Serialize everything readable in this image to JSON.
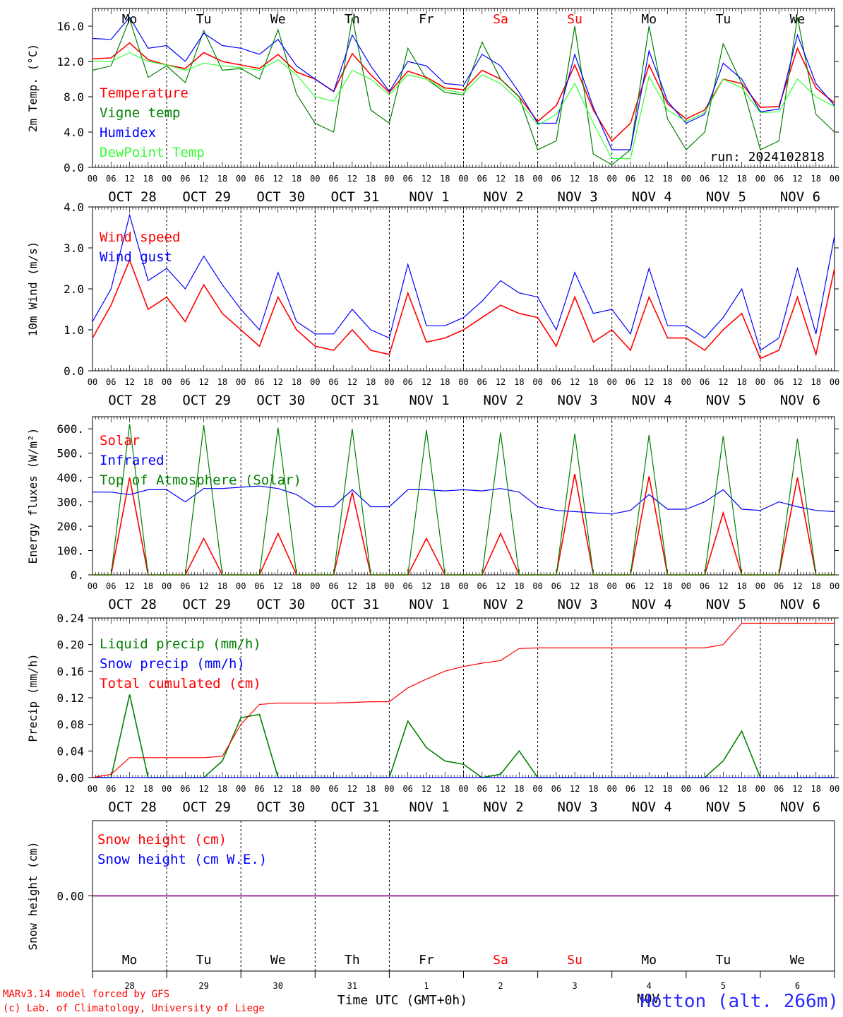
{
  "days": [
    "Mo",
    "Tu",
    "We",
    "Th",
    "Fr",
    "Sa",
    "Su",
    "Mo",
    "Tu",
    "We"
  ],
  "day_colors": [
    "#000000",
    "#000000",
    "#000000",
    "#000000",
    "#000000",
    "#ff0000",
    "#ff0000",
    "#000000",
    "#000000",
    "#000000"
  ],
  "dates": [
    "OCT 28",
    "OCT 29",
    "OCT 30",
    "OCT 31",
    "NOV  1",
    "NOV  2",
    "NOV  3",
    "NOV  4",
    "NOV  5",
    "NOV  6"
  ],
  "hour_ticks": [
    "00",
    "06",
    "12",
    "18"
  ],
  "last_hour_tick": "00",
  "run_label": "run: 2024102818",
  "bottom": {
    "day_numbers": [
      "28",
      "29",
      "30",
      "31",
      "1",
      "2",
      "3",
      "4",
      "5",
      "6"
    ],
    "month": "NOV",
    "xlabel": "Time UTC (GMT+0h)",
    "credit_line1": "MARv3.14 model forced by GFS",
    "credit_line2": "(c) Lab. of Climatology, University of Liege",
    "station": "Hotton (alt. 266m)"
  },
  "chart_data": [
    {
      "type": "line",
      "ylabel": "2m Temp. (°C)",
      "ylim": [
        0,
        18
      ],
      "yticks": [
        0,
        4,
        8,
        12,
        16
      ],
      "ytick_labels": [
        "0.0",
        "4.0",
        "8.0",
        "12.0",
        "16.0"
      ],
      "x_hours": [
        0,
        6,
        12,
        18,
        24,
        30,
        36,
        42,
        48,
        54,
        60,
        66,
        72,
        78,
        84,
        90,
        96,
        102,
        108,
        114,
        120,
        126,
        132,
        138,
        144,
        150,
        156,
        162,
        168,
        174,
        180,
        186,
        192,
        198,
        204,
        210,
        216,
        222,
        228,
        234,
        240
      ],
      "series": [
        {
          "name": "Temperature",
          "color": "#ff0000",
          "values": [
            12.3,
            12.4,
            14.1,
            12.2,
            11.6,
            11.2,
            13.0,
            12.0,
            11.6,
            11.2,
            12.8,
            10.8,
            10.0,
            8.6,
            12.9,
            10.5,
            8.5,
            10.9,
            10.2,
            9.0,
            8.8,
            11.0,
            10.0,
            8.0,
            5.2,
            7.0,
            11.6,
            6.5,
            3.0,
            5.0,
            11.6,
            7.2,
            5.5,
            6.5,
            10.0,
            9.5,
            6.8,
            6.9,
            13.5,
            9.0,
            7.3
          ]
        },
        {
          "name": "Vigne temp",
          "color": "#008000",
          "values": [
            11.0,
            11.5,
            16.8,
            10.2,
            11.5,
            9.6,
            15.5,
            11.0,
            11.2,
            10.0,
            15.6,
            8.3,
            5.0,
            4.0,
            17.0,
            6.5,
            5.0,
            13.5,
            10.0,
            8.5,
            8.2,
            14.2,
            10.0,
            8.0,
            2.0,
            3.0,
            16.0,
            1.5,
            0.3,
            2.0,
            16.0,
            5.5,
            2.0,
            4.0,
            14.0,
            9.5,
            2.0,
            3.0,
            17.0,
            6.0,
            4.0
          ]
        },
        {
          "name": "Humidex",
          "color": "#0000ff",
          "values": [
            14.6,
            14.5,
            17.0,
            13.5,
            13.8,
            12.0,
            15.2,
            13.8,
            13.5,
            12.8,
            14.5,
            11.5,
            10.0,
            8.6,
            15.0,
            11.5,
            8.6,
            12.0,
            11.5,
            9.5,
            9.3,
            12.8,
            11.5,
            8.5,
            5.0,
            5.0,
            12.8,
            6.8,
            2.0,
            2.0,
            13.2,
            7.5,
            5.0,
            6.0,
            11.8,
            10.0,
            6.3,
            6.6,
            15.0,
            9.5,
            7.0
          ]
        },
        {
          "name": "DewPoint Temp",
          "color": "#33ff33",
          "values": [
            12.0,
            12.0,
            13.0,
            12.0,
            11.6,
            11.0,
            11.8,
            11.5,
            11.3,
            11.0,
            12.2,
            10.5,
            8.0,
            7.5,
            11.0,
            10.0,
            8.2,
            10.5,
            10.0,
            8.8,
            8.4,
            10.5,
            9.5,
            7.5,
            4.8,
            6.0,
            9.5,
            5.0,
            1.0,
            1.0,
            10.3,
            6.5,
            5.2,
            6.2,
            10.0,
            9.0,
            6.2,
            6.3,
            10.0,
            8.0,
            6.9
          ]
        }
      ]
    },
    {
      "type": "line",
      "ylabel": "10m Wind (m/s)",
      "ylim": [
        0,
        4
      ],
      "yticks": [
        0,
        1,
        2,
        3,
        4
      ],
      "ytick_labels": [
        "0.0",
        "1.0",
        "2.0",
        "3.0",
        "4.0"
      ],
      "x_hours": [
        0,
        6,
        12,
        18,
        24,
        30,
        36,
        42,
        48,
        54,
        60,
        66,
        72,
        78,
        84,
        90,
        96,
        102,
        108,
        114,
        120,
        126,
        132,
        138,
        144,
        150,
        156,
        162,
        168,
        174,
        180,
        186,
        192,
        198,
        204,
        210,
        216,
        222,
        228,
        234,
        240
      ],
      "series": [
        {
          "name": "Wind speed",
          "color": "#ff0000",
          "values": [
            0.8,
            1.6,
            2.7,
            1.5,
            1.8,
            1.2,
            2.1,
            1.4,
            1.0,
            0.6,
            1.8,
            1.0,
            0.6,
            0.5,
            1.0,
            0.5,
            0.4,
            1.9,
            0.7,
            0.8,
            1.0,
            1.3,
            1.6,
            1.4,
            1.3,
            0.6,
            1.8,
            0.7,
            1.0,
            0.5,
            1.8,
            0.8,
            0.8,
            0.5,
            1.0,
            1.4,
            0.3,
            0.5,
            1.8,
            0.4,
            2.5
          ]
        },
        {
          "name": "Wind gust",
          "color": "#0000ff",
          "values": [
            1.2,
            2.0,
            3.8,
            2.2,
            2.5,
            2.0,
            2.8,
            2.1,
            1.5,
            1.0,
            2.4,
            1.2,
            0.9,
            0.9,
            1.5,
            1.0,
            0.8,
            2.6,
            1.1,
            1.1,
            1.3,
            1.7,
            2.2,
            1.9,
            1.8,
            1.0,
            2.4,
            1.4,
            1.5,
            0.9,
            2.5,
            1.1,
            1.1,
            0.8,
            1.3,
            2.0,
            0.5,
            0.8,
            2.5,
            0.9,
            3.3
          ]
        }
      ]
    },
    {
      "type": "line",
      "ylabel": "Energy fluxes (W/m²)",
      "ylim": [
        0,
        650
      ],
      "yticks": [
        0,
        100,
        200,
        300,
        400,
        500,
        600
      ],
      "ytick_labels": [
        "0.",
        "100.",
        "200.",
        "300.",
        "400.",
        "500.",
        "600."
      ],
      "x_hours": [
        0,
        6,
        12,
        18,
        24,
        30,
        36,
        42,
        48,
        54,
        60,
        66,
        72,
        78,
        84,
        90,
        96,
        102,
        108,
        114,
        120,
        126,
        132,
        138,
        144,
        150,
        156,
        162,
        168,
        174,
        180,
        186,
        192,
        198,
        204,
        210,
        216,
        222,
        228,
        234,
        240
      ],
      "series": [
        {
          "name": "Solar",
          "color": "#ff0000",
          "values": [
            0,
            0,
            400,
            0,
            0,
            0,
            150,
            0,
            0,
            0,
            170,
            0,
            0,
            0,
            340,
            0,
            0,
            0,
            150,
            0,
            0,
            0,
            170,
            0,
            0,
            0,
            415,
            0,
            0,
            0,
            405,
            0,
            0,
            0,
            255,
            0,
            0,
            0,
            400,
            0,
            0
          ]
        },
        {
          "name": "Infrared",
          "color": "#0000ff",
          "values": [
            340,
            340,
            330,
            350,
            350,
            300,
            355,
            355,
            360,
            365,
            355,
            330,
            280,
            280,
            350,
            280,
            280,
            350,
            350,
            345,
            350,
            345,
            355,
            340,
            280,
            265,
            260,
            255,
            250,
            265,
            330,
            270,
            270,
            300,
            350,
            270,
            265,
            300,
            280,
            265,
            260
          ]
        },
        {
          "name": "Top of Atmosphere (Solar)",
          "color": "#008000",
          "values": [
            0,
            0,
            620,
            0,
            0,
            0,
            615,
            0,
            0,
            0,
            605,
            0,
            0,
            0,
            600,
            0,
            0,
            0,
            595,
            0,
            0,
            0,
            585,
            0,
            0,
            0,
            580,
            0,
            0,
            0,
            575,
            0,
            0,
            0,
            570,
            0,
            0,
            0,
            560,
            0,
            0
          ]
        }
      ]
    },
    {
      "type": "line",
      "ylabel": "Precip (mm/h)",
      "ylim": [
        0,
        0.24
      ],
      "yticks": [
        0,
        0.04,
        0.08,
        0.12,
        0.16,
        0.2,
        0.24
      ],
      "ytick_labels": [
        "0.00",
        "0.04",
        "0.08",
        "0.12",
        "0.16",
        "0.20",
        "0.24"
      ],
      "x_hours": [
        0,
        6,
        12,
        18,
        24,
        30,
        36,
        42,
        48,
        54,
        60,
        66,
        72,
        78,
        84,
        90,
        96,
        102,
        108,
        114,
        120,
        126,
        132,
        138,
        144,
        150,
        156,
        162,
        168,
        174,
        180,
        186,
        192,
        198,
        204,
        210,
        216,
        222,
        228,
        234,
        240
      ],
      "series": [
        {
          "name": "Liquid precip (mm/h)",
          "color": "#008000",
          "values": [
            0,
            0,
            0.125,
            0,
            0,
            0,
            0,
            0.025,
            0.09,
            0.095,
            0,
            0,
            0,
            0,
            0,
            0,
            0,
            0.085,
            0.045,
            0.025,
            0.02,
            0,
            0.005,
            0.04,
            0,
            0,
            0,
            0,
            0,
            0,
            0,
            0,
            0,
            0,
            0.025,
            0.07,
            0,
            0,
            0,
            0,
            0
          ]
        },
        {
          "name": "Snow precip (mm/h)",
          "color": "#0000ff",
          "values": [
            0,
            0,
            0,
            0,
            0,
            0,
            0,
            0,
            0,
            0,
            0,
            0,
            0,
            0,
            0,
            0,
            0,
            0,
            0,
            0,
            0,
            0,
            0,
            0,
            0,
            0,
            0,
            0,
            0,
            0,
            0,
            0,
            0,
            0,
            0,
            0,
            0,
            0,
            0,
            0,
            0
          ]
        },
        {
          "name": "Total cumulated (cm)",
          "color": "#ff0000",
          "values": [
            0,
            0.005,
            0.03,
            0.03,
            0.03,
            0.03,
            0.03,
            0.032,
            0.08,
            0.11,
            0.112,
            0.112,
            0.112,
            0.112,
            0.113,
            0.114,
            0.114,
            0.135,
            0.148,
            0.16,
            0.167,
            0.172,
            0.176,
            0.194,
            0.195,
            0.195,
            0.195,
            0.195,
            0.195,
            0.195,
            0.195,
            0.195,
            0.195,
            0.195,
            0.2,
            0.232,
            0.232,
            0.232,
            0.232,
            0.232,
            0.232
          ]
        }
      ]
    },
    {
      "type": "line",
      "ylabel": "Snow height (cm)",
      "ylim": [
        -1,
        1
      ],
      "yticks": [
        0
      ],
      "ytick_labels": [
        "0.00"
      ],
      "x_hours": [
        0,
        240
      ],
      "series": [
        {
          "name": "Snow height (cm)",
          "color": "#ff0000",
          "values": [
            0,
            0
          ]
        },
        {
          "name": "Snow height (cm W.E.)",
          "color": "#0000ff",
          "values": [
            0,
            0
          ]
        }
      ]
    }
  ]
}
